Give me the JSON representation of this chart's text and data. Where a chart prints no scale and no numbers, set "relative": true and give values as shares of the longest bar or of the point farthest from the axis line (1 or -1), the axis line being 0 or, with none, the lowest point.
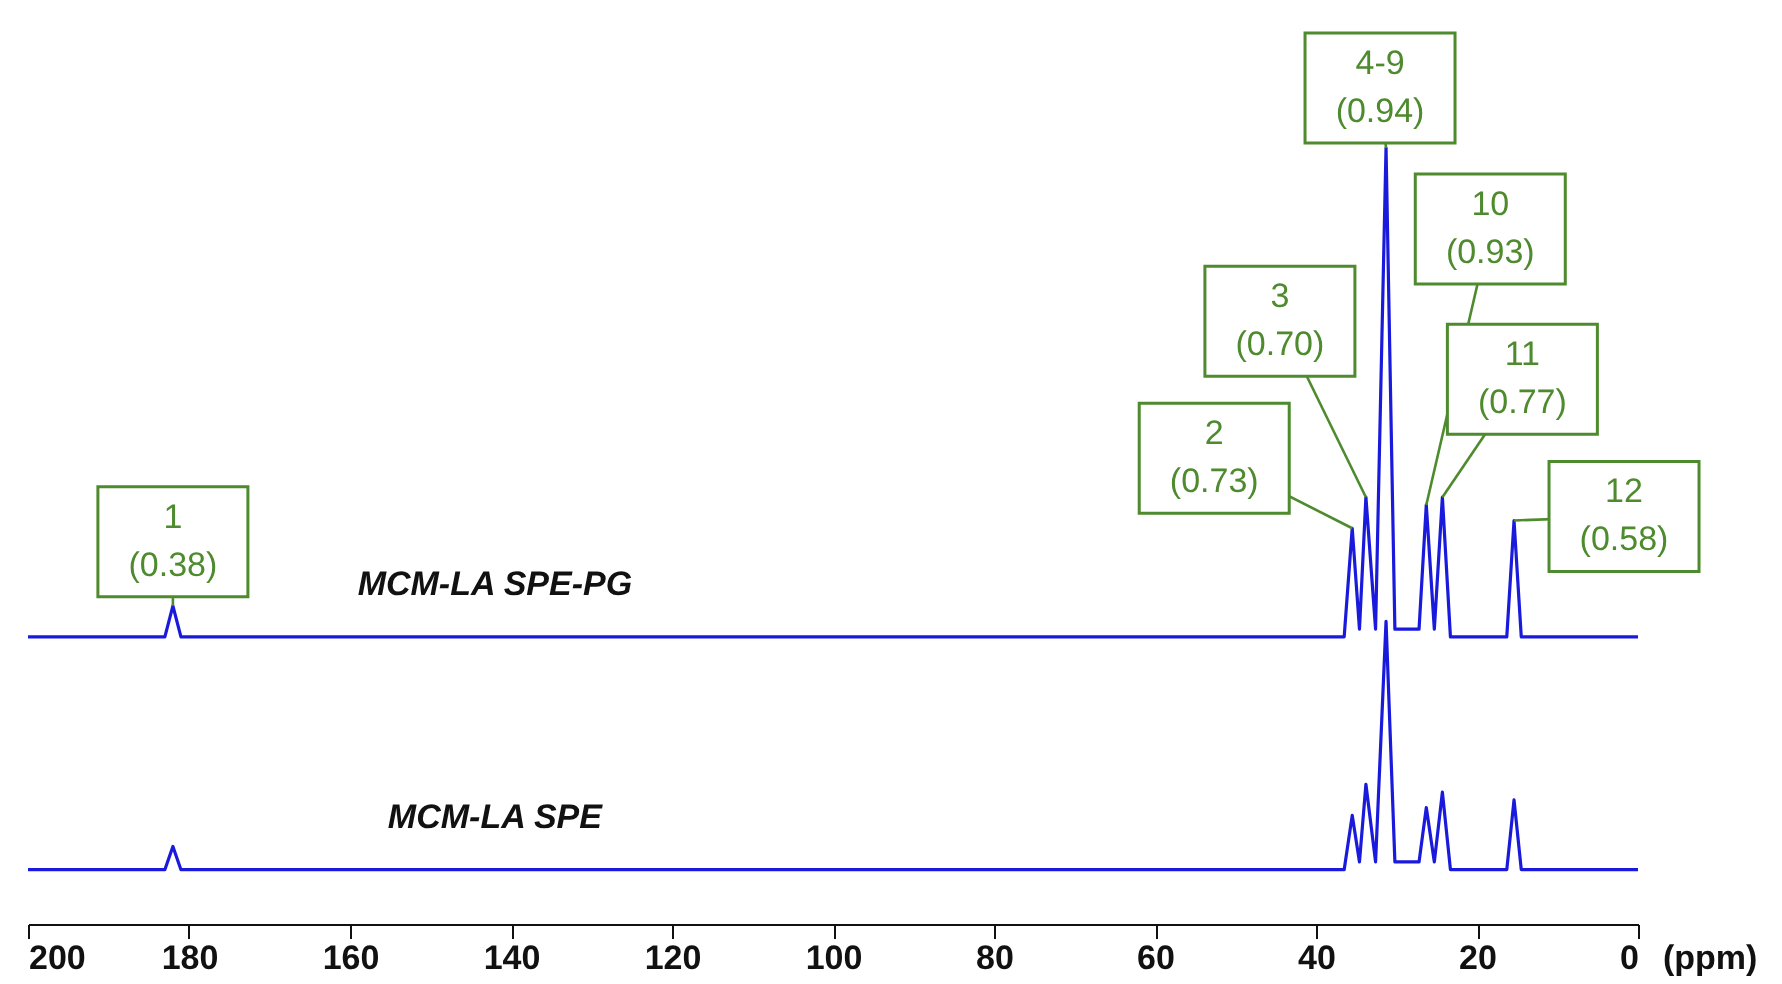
{
  "chart_data": {
    "type": "line",
    "relative": true,
    "xlabel": "(ppm)",
    "xlim": [
      200,
      0
    ],
    "xticks": [
      200,
      180,
      160,
      140,
      120,
      100,
      80,
      60,
      40,
      20,
      0
    ],
    "grid": false,
    "marker": "none",
    "line_style": "solid",
    "series": [
      {
        "name": "MCM-LA SPE-PG",
        "color": "#1a1adc",
        "x": [
          200,
          183,
          182,
          181,
          36.5,
          35.5,
          34.6,
          33.8,
          32.6,
          31.3,
          30.2,
          27.2,
          26.3,
          25.3,
          24.3,
          23.3,
          16.3,
          15.4,
          14.5,
          0
        ],
        "values": [
          0.37,
          0.37,
          0.41,
          0.37,
          0.37,
          0.51,
          0.38,
          0.55,
          0.38,
          1.0,
          0.38,
          0.38,
          0.54,
          0.38,
          0.55,
          0.37,
          0.37,
          0.52,
          0.37,
          0.37
        ]
      },
      {
        "name": "MCM-LA SPE",
        "color": "#1a1adc",
        "x": [
          200,
          183,
          182,
          181,
          36.5,
          35.5,
          34.6,
          33.8,
          32.6,
          31.3,
          30.2,
          27.2,
          26.3,
          25.3,
          24.3,
          23.3,
          16.3,
          15.4,
          14.5,
          0
        ],
        "values": [
          0.07,
          0.07,
          0.1,
          0.07,
          0.07,
          0.14,
          0.08,
          0.18,
          0.08,
          0.39,
          0.08,
          0.08,
          0.15,
          0.08,
          0.17,
          0.07,
          0.07,
          0.16,
          0.07,
          0.07
        ]
      }
    ],
    "annotations": [
      {
        "text": "1\n(0.38)",
        "x": 182,
        "y": 0.41
      },
      {
        "text": "2\n(0.73)",
        "x": 35.5,
        "y": 0.51
      },
      {
        "text": "3\n(0.70)",
        "x": 33.8,
        "y": 0.55
      },
      {
        "text": "4-9\n(0.94)",
        "x": 31.3,
        "y": 1.0
      },
      {
        "text": "10\n(0.93)",
        "x": 26.3,
        "y": 0.54
      },
      {
        "text": "11\n(0.77)",
        "x": 24.3,
        "y": 0.55
      },
      {
        "text": "12\n(0.58)",
        "x": 15.4,
        "y": 0.52
      }
    ]
  }
}
